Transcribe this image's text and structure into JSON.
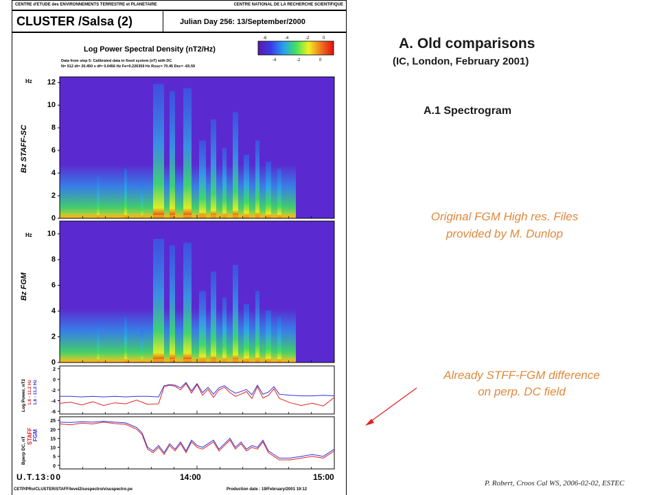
{
  "slide": {
    "heading": "A.  Old comparisons",
    "subheading": "(IC, London, February 2001)",
    "section": "A.1 Spectrogram",
    "note1_line1": "Original FGM High res. Files",
    "note1_line2": "provided by M. Dunlop",
    "note2_line1": "Already STFF-FGM difference",
    "note2_line2": "on perp. DC field",
    "footer": "P. Robert, Croos Cal WS, 2006-02-02, ESTEC",
    "colors": {
      "heading": "#1a1a1a",
      "notes": "#e0883a",
      "arrow": "#e02020"
    }
  },
  "figure": {
    "header_left": "CENTRE d'ETUDE des ENVIRONNEMENTS TERRESTRE et PLANETAIRE",
    "header_right": "CENTRE NATIONAL DE LA RECHERCHE SCIENTIFIQUE",
    "mission": "CLUSTER /Salsa (2)",
    "julian": "Julian Day 256:  13/September/2000",
    "plot_title": "Log Power Spectral Density  (nT2/Hz)",
    "info_line1": "Data from step 5: Calibrated data in fixed system (nT) with DC",
    "info_line2": "N=  512   dt= 20.450 s   df= 0.0456 Hz   Fe=0.226359 Hz   Rsuc= 70.45   Dec= -65.59",
    "colorbar_ticks_top": [
      "-6",
      "-4",
      "-2",
      "0"
    ],
    "colorbar_ticks_bottom": [
      "-4",
      "-2",
      "0"
    ],
    "xtick_labels": [
      "U.T.13:00",
      "14:00",
      "15:00"
    ],
    "footer_left": "CETP/PRo/CLUSTER/STAFF/level2/sospectro/visuspectro.pe",
    "footer_right": "Production date : 19/February/2001 19:12"
  },
  "chart_data": [
    {
      "type": "heatmap",
      "title": "Log Power Spectral Density  (nT2/Hz)",
      "ylabel": "Bz  STAFF-SC",
      "yunit": "Hz",
      "ylim": [
        0,
        12.5
      ],
      "yticks": [
        0,
        2,
        4,
        6,
        8,
        10,
        12
      ],
      "x": [
        "13:00",
        "14:00",
        "15:00"
      ],
      "colorscale": [
        "#5a1aa8",
        "#3a3ae8",
        "#2aa0f0",
        "#40e060",
        "#f0f020",
        "#f07020",
        "#e01010"
      ]
    },
    {
      "type": "heatmap",
      "ylabel": "Bz  FGM",
      "yunit": "Hz",
      "ylim": [
        0,
        11
      ],
      "yticks": [
        0,
        2,
        4,
        6,
        8,
        10
      ],
      "x": [
        "13:00",
        "14:00",
        "15:00"
      ]
    },
    {
      "type": "line",
      "ylabel": "Log Power, nT2",
      "ylim": [
        -6.5,
        2.5
      ],
      "yticks": [
        2,
        0,
        -2,
        -4,
        -6
      ],
      "series": [
        {
          "name": "1.6 - 11.2 Hz",
          "color": "#3030e0",
          "x": [
            0,
            0.04,
            0.08,
            0.12,
            0.16,
            0.2,
            0.24,
            0.28,
            0.32,
            0.36,
            0.38,
            0.4,
            0.42,
            0.44,
            0.46,
            0.48,
            0.5,
            0.52,
            0.54,
            0.56,
            0.58,
            0.6,
            0.62,
            0.64,
            0.66,
            0.68,
            0.7,
            0.72,
            0.74,
            0.76,
            0.78,
            0.8,
            0.84,
            0.88,
            0.92,
            0.96,
            1
          ],
          "y": [
            -3.2,
            -3.2,
            -3.3,
            -3.2,
            -3.3,
            -3.2,
            -3.3,
            -3.2,
            -3.2,
            -3.3,
            -1.2,
            -1.0,
            -1.1,
            -1.6,
            -0.6,
            -2.2,
            -0.8,
            -2.5,
            -1.5,
            -2.8,
            -1.6,
            -1.2,
            -2.0,
            -2.6,
            -2.3,
            -1.9,
            -2.9,
            -1.1,
            -2.8,
            -2.4,
            -1.4,
            -2.8,
            -3.0,
            -3.1,
            -3.1,
            -3.0,
            -3.1
          ]
        },
        {
          "name": "1.6 - 11.2 Hz",
          "color": "#e02020",
          "x": [
            0,
            0.04,
            0.08,
            0.12,
            0.16,
            0.2,
            0.24,
            0.28,
            0.32,
            0.36,
            0.38,
            0.4,
            0.42,
            0.44,
            0.46,
            0.48,
            0.5,
            0.52,
            0.54,
            0.56,
            0.58,
            0.6,
            0.62,
            0.64,
            0.66,
            0.68,
            0.7,
            0.72,
            0.74,
            0.76,
            0.78,
            0.8,
            0.84,
            0.88,
            0.92,
            0.96,
            1
          ],
          "y": [
            -4.5,
            -4.3,
            -4.8,
            -4.2,
            -4.9,
            -4.4,
            -4.6,
            -3.9,
            -4.7,
            -4.6,
            -1.4,
            -1.1,
            -1.3,
            -2.0,
            -0.8,
            -2.6,
            -1.0,
            -3.0,
            -1.9,
            -3.4,
            -2.0,
            -1.5,
            -2.5,
            -3.2,
            -2.8,
            -2.3,
            -3.6,
            -1.4,
            -3.5,
            -3.0,
            -1.8,
            -3.6,
            -4.4,
            -4.9,
            -4.5,
            -5.0,
            -3.4
          ]
        }
      ],
      "legend": [
        "1.6 - 11.2 Hz",
        "1.6 - 11.2 Hz"
      ]
    },
    {
      "type": "line",
      "ylabel": "Bperp DC, nT",
      "ylim": [
        -2,
        27
      ],
      "yticks": [
        0,
        5,
        10,
        15,
        20,
        25
      ],
      "series": [
        {
          "name": "STAFF",
          "color": "#e02020",
          "x": [
            0,
            0.04,
            0.08,
            0.12,
            0.16,
            0.2,
            0.24,
            0.28,
            0.3,
            0.32,
            0.34,
            0.36,
            0.38,
            0.4,
            0.42,
            0.44,
            0.46,
            0.48,
            0.5,
            0.52,
            0.54,
            0.56,
            0.58,
            0.6,
            0.62,
            0.64,
            0.66,
            0.68,
            0.7,
            0.72,
            0.74,
            0.76,
            0.78,
            0.8,
            0.84,
            0.88,
            0.92,
            0.96,
            1
          ],
          "y": [
            23,
            22.5,
            23.5,
            23,
            24,
            23.2,
            22.8,
            20,
            17,
            9,
            7,
            10,
            6,
            11,
            8,
            12,
            7,
            13,
            10,
            9,
            11,
            13,
            8,
            11,
            14,
            9,
            12,
            8,
            10,
            9,
            13,
            7,
            5,
            3,
            3,
            4,
            5,
            4,
            8
          ]
        },
        {
          "name": "FGM",
          "color": "#3030e0",
          "x": [
            0,
            0.04,
            0.08,
            0.12,
            0.16,
            0.2,
            0.24,
            0.28,
            0.3,
            0.32,
            0.34,
            0.36,
            0.38,
            0.4,
            0.42,
            0.44,
            0.46,
            0.48,
            0.5,
            0.52,
            0.54,
            0.56,
            0.58,
            0.6,
            0.62,
            0.64,
            0.66,
            0.68,
            0.7,
            0.72,
            0.74,
            0.76,
            0.78,
            0.8,
            0.84,
            0.88,
            0.92,
            0.96,
            1
          ],
          "y": [
            24,
            23.8,
            24.2,
            24,
            24.5,
            24,
            23.6,
            21,
            18,
            10,
            8,
            11,
            7,
            12,
            9,
            13,
            8,
            14,
            11,
            10,
            12,
            14,
            9,
            12,
            15,
            10,
            13,
            9,
            11,
            10,
            14,
            8,
            6,
            4,
            4,
            5,
            6,
            5,
            9
          ]
        }
      ]
    }
  ]
}
